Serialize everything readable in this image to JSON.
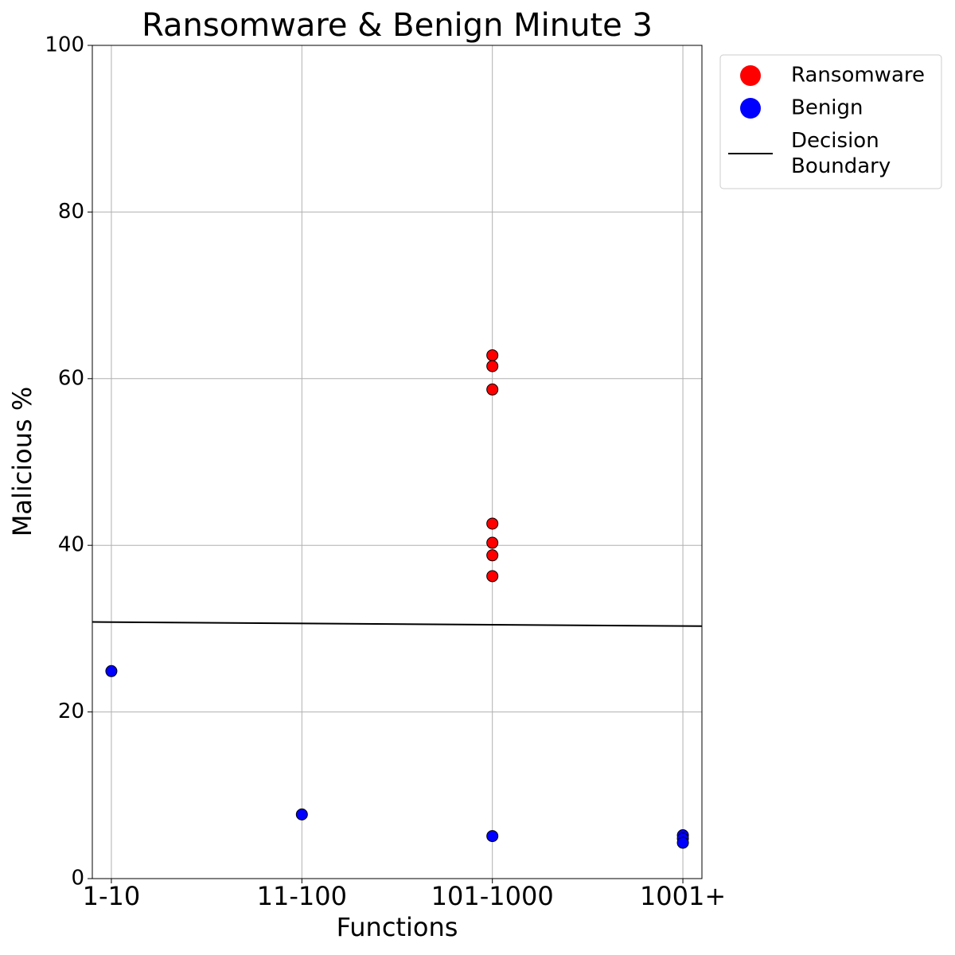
{
  "chart_data": {
    "type": "scatter",
    "title": "Ransomware & Benign Minute 3",
    "x_label": "Functions",
    "y_label": "Malicious %",
    "xlim": [
      -0.1,
      3.1
    ],
    "xticks": [
      {
        "value": 0,
        "label": "1-10"
      },
      {
        "value": 1,
        "label": "11-100"
      },
      {
        "value": 2,
        "label": "101-1000"
      },
      {
        "value": 3,
        "label": "1001+"
      }
    ],
    "ylim": [
      0,
      100
    ],
    "yticks": [
      0,
      20,
      40,
      60,
      80,
      100
    ],
    "grid": true,
    "legend": "upper right outside",
    "series": [
      {
        "name": "Ransomware",
        "color": "#ff0000",
        "kind": "scatter",
        "x": [
          2,
          2,
          2,
          2,
          2,
          2,
          2
        ],
        "values": [
          62.8,
          61.5,
          58.7,
          42.6,
          40.3,
          38.8,
          36.3
        ]
      },
      {
        "name": "Benign",
        "color": "#0000ff",
        "kind": "scatter",
        "x": [
          0,
          1,
          2,
          3,
          3,
          3
        ],
        "values": [
          24.9,
          7.7,
          5.1,
          5.2,
          4.8,
          4.3
        ]
      },
      {
        "name": "Decision Boundary",
        "color": "#000000",
        "kind": "line",
        "x": [
          -0.1,
          3.1
        ],
        "values": [
          30.8,
          30.3
        ]
      }
    ]
  }
}
